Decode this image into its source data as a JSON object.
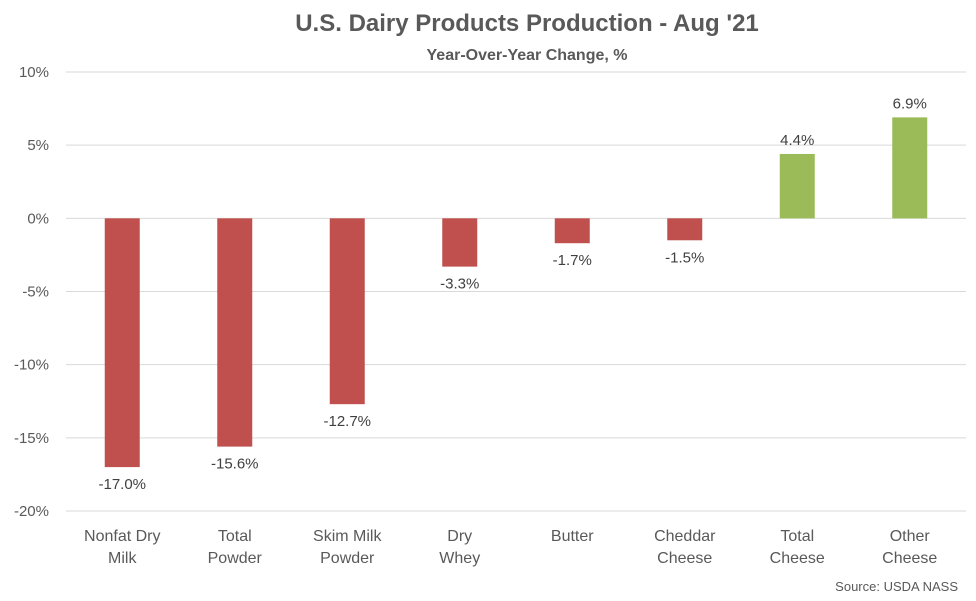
{
  "chart_data": {
    "type": "bar",
    "title": "U.S. Dairy Products Production - Aug '21",
    "subtitle": "Year-Over-Year Change, %",
    "categories": [
      [
        "Nonfat Dry",
        "Milk"
      ],
      [
        "Total",
        "Powder"
      ],
      [
        "Skim Milk",
        "Powder"
      ],
      [
        "Dry",
        "Whey"
      ],
      [
        "Butter"
      ],
      [
        "Cheddar",
        "Cheese"
      ],
      [
        "Total",
        "Cheese"
      ],
      [
        "Other",
        "Cheese"
      ]
    ],
    "values": [
      -17.0,
      -15.6,
      -12.7,
      -3.3,
      -1.7,
      -1.5,
      4.4,
      6.9
    ],
    "data_labels": [
      "-17.0%",
      "-15.6%",
      "-12.7%",
      "-3.3%",
      "-1.7%",
      "-1.5%",
      "4.4%",
      "6.9%"
    ],
    "ylim": [
      -20,
      10
    ],
    "yticks": [
      10,
      5,
      0,
      -5,
      -10,
      -15,
      -20
    ],
    "ytick_labels": [
      "10%",
      "5%",
      "0%",
      "-5%",
      "-10%",
      "-15%",
      "-20%"
    ],
    "grid": true,
    "colors": {
      "negative": "#C0504D",
      "positive": "#9BBB59",
      "grid": "#D9D9D9",
      "text": "#595959"
    },
    "source": "Source: USDA NASS"
  }
}
